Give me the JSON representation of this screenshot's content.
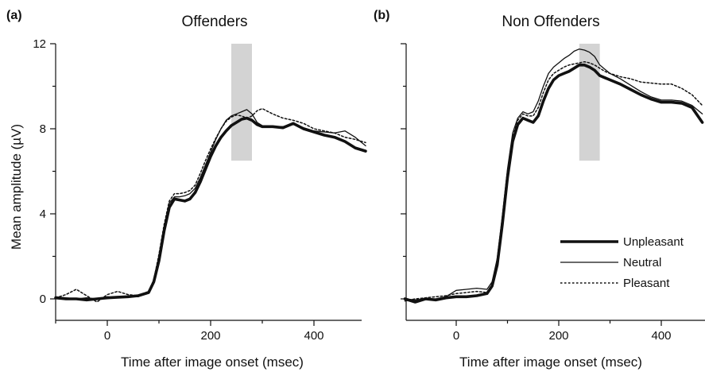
{
  "figure": {
    "ylabel": "Mean amplitude (µV)",
    "legend": [
      {
        "label": "Unpleasant",
        "style": "thick"
      },
      {
        "label": "Neutral",
        "style": "thin"
      },
      {
        "label": "Pleasant",
        "style": "dotted"
      }
    ]
  },
  "chart_data": [
    {
      "type": "line",
      "panel": "(a)",
      "title": "Offenders",
      "xlabel": "Time after image onset (msec)",
      "ylabel": "Mean amplitude (µV)",
      "xlim": [
        -100,
        500
      ],
      "ylim": [
        -1,
        12
      ],
      "xticks": [
        0,
        200,
        400
      ],
      "yticks": [
        0,
        4,
        8,
        12
      ],
      "shaded_window": {
        "x": [
          240,
          280
        ],
        "y": [
          6.5,
          12
        ]
      },
      "series": [
        {
          "name": "Unpleasant",
          "style": "thick",
          "x": [
            -100,
            -80,
            -60,
            -40,
            -20,
            0,
            20,
            40,
            60,
            80,
            90,
            100,
            110,
            120,
            130,
            140,
            150,
            160,
            170,
            180,
            190,
            200,
            210,
            220,
            230,
            240,
            250,
            260,
            270,
            280,
            290,
            300,
            320,
            340,
            360,
            380,
            400,
            420,
            440,
            460,
            480,
            500
          ],
          "y": [
            0.05,
            0.0,
            0.0,
            -0.05,
            0.0,
            0.05,
            0.08,
            0.1,
            0.15,
            0.3,
            0.8,
            1.8,
            3.2,
            4.3,
            4.7,
            4.65,
            4.6,
            4.7,
            5.0,
            5.5,
            6.1,
            6.7,
            7.2,
            7.6,
            7.9,
            8.15,
            8.3,
            8.45,
            8.5,
            8.4,
            8.2,
            8.1,
            8.1,
            8.05,
            8.25,
            8.0,
            7.85,
            7.7,
            7.6,
            7.4,
            7.1,
            6.95
          ]
        },
        {
          "name": "Neutral",
          "style": "thin",
          "x": [
            -100,
            -80,
            -60,
            -40,
            -20,
            0,
            20,
            40,
            60,
            80,
            90,
            100,
            110,
            120,
            130,
            140,
            150,
            160,
            170,
            180,
            190,
            200,
            210,
            220,
            230,
            240,
            250,
            260,
            270,
            280,
            290,
            300,
            320,
            340,
            360,
            380,
            400,
            420,
            440,
            460,
            480,
            500
          ],
          "y": [
            0.1,
            0.05,
            0.0,
            0.05,
            0.0,
            0.1,
            0.05,
            0.1,
            0.1,
            0.3,
            0.9,
            2.0,
            3.4,
            4.5,
            4.8,
            4.8,
            4.85,
            4.95,
            5.2,
            5.7,
            6.3,
            6.9,
            7.5,
            8.0,
            8.4,
            8.6,
            8.7,
            8.8,
            8.9,
            8.7,
            8.3,
            8.15,
            8.1,
            8.1,
            8.2,
            8.05,
            7.9,
            7.85,
            7.8,
            7.9,
            7.6,
            7.2
          ]
        },
        {
          "name": "Pleasant",
          "style": "dotted",
          "x": [
            -100,
            -80,
            -60,
            -40,
            -20,
            0,
            20,
            40,
            60,
            80,
            90,
            100,
            110,
            120,
            130,
            140,
            150,
            160,
            170,
            180,
            190,
            200,
            210,
            220,
            230,
            240,
            250,
            260,
            270,
            280,
            290,
            300,
            320,
            340,
            360,
            380,
            400,
            420,
            440,
            460,
            480,
            500
          ],
          "y": [
            0.05,
            0.2,
            0.45,
            0.15,
            -0.15,
            0.2,
            0.35,
            0.2,
            0.15,
            0.35,
            0.9,
            2.1,
            3.5,
            4.6,
            4.95,
            4.95,
            5.0,
            5.1,
            5.35,
            5.9,
            6.5,
            7.05,
            7.55,
            8.0,
            8.35,
            8.55,
            8.65,
            8.6,
            8.5,
            8.6,
            8.85,
            8.95,
            8.7,
            8.5,
            8.4,
            8.25,
            8.0,
            7.9,
            7.8,
            7.6,
            7.5,
            7.35
          ]
        }
      ]
    },
    {
      "type": "line",
      "panel": "(b)",
      "title": "Non Offenders",
      "xlabel": "Time after image onset (msec)",
      "ylabel": "",
      "xlim": [
        -100,
        480
      ],
      "ylim": [
        -1,
        12
      ],
      "xticks": [
        0,
        200,
        400
      ],
      "yticks": [
        0,
        4,
        8,
        12
      ],
      "shaded_window": {
        "x": [
          240,
          280
        ],
        "y": [
          6.5,
          12
        ]
      },
      "series": [
        {
          "name": "Unpleasant",
          "style": "thick",
          "x": [
            -100,
            -80,
            -60,
            -40,
            -20,
            0,
            20,
            40,
            60,
            70,
            80,
            90,
            100,
            110,
            120,
            130,
            140,
            150,
            160,
            170,
            180,
            190,
            200,
            210,
            220,
            230,
            240,
            250,
            260,
            270,
            280,
            290,
            300,
            320,
            340,
            360,
            380,
            400,
            420,
            440,
            460,
            480
          ],
          "y": [
            0.0,
            -0.15,
            0.0,
            -0.05,
            0.05,
            0.1,
            0.1,
            0.15,
            0.25,
            0.6,
            1.6,
            3.5,
            5.7,
            7.4,
            8.2,
            8.5,
            8.4,
            8.3,
            8.6,
            9.3,
            9.9,
            10.3,
            10.5,
            10.6,
            10.7,
            10.85,
            11.0,
            11.0,
            10.9,
            10.75,
            10.5,
            10.4,
            10.3,
            10.1,
            9.85,
            9.6,
            9.4,
            9.25,
            9.25,
            9.2,
            9.0,
            8.3
          ]
        },
        {
          "name": "Neutral",
          "style": "thin",
          "x": [
            -100,
            -80,
            -60,
            -40,
            -20,
            0,
            20,
            40,
            60,
            70,
            80,
            90,
            100,
            110,
            120,
            130,
            140,
            150,
            160,
            170,
            180,
            190,
            200,
            210,
            220,
            230,
            240,
            250,
            260,
            270,
            280,
            290,
            300,
            320,
            340,
            360,
            380,
            400,
            420,
            440,
            460,
            480
          ],
          "y": [
            0.0,
            -0.05,
            0.0,
            0.0,
            0.1,
            0.4,
            0.45,
            0.5,
            0.45,
            0.8,
            1.9,
            3.9,
            6.1,
            7.8,
            8.5,
            8.8,
            8.7,
            8.8,
            9.3,
            10.0,
            10.6,
            10.9,
            11.1,
            11.3,
            11.45,
            11.65,
            11.75,
            11.7,
            11.6,
            11.4,
            11.0,
            10.8,
            10.6,
            10.35,
            10.05,
            9.75,
            9.5,
            9.35,
            9.35,
            9.3,
            9.1,
            8.7
          ]
        },
        {
          "name": "Pleasant",
          "style": "dotted",
          "x": [
            -100,
            -80,
            -60,
            -40,
            -20,
            0,
            20,
            40,
            60,
            70,
            80,
            90,
            100,
            110,
            120,
            130,
            140,
            150,
            160,
            170,
            180,
            190,
            200,
            210,
            220,
            230,
            240,
            250,
            260,
            270,
            280,
            290,
            300,
            320,
            340,
            360,
            380,
            400,
            420,
            440,
            460,
            480
          ],
          "y": [
            -0.1,
            0.0,
            0.05,
            0.1,
            0.15,
            0.25,
            0.3,
            0.35,
            0.3,
            0.7,
            1.75,
            3.7,
            5.9,
            7.6,
            8.4,
            8.7,
            8.6,
            8.6,
            9.0,
            9.7,
            10.3,
            10.6,
            10.75,
            10.9,
            11.0,
            11.05,
            11.1,
            11.15,
            11.1,
            11.0,
            10.85,
            10.7,
            10.6,
            10.45,
            10.35,
            10.2,
            10.15,
            10.1,
            10.1,
            9.9,
            9.6,
            9.1
          ]
        }
      ]
    }
  ]
}
